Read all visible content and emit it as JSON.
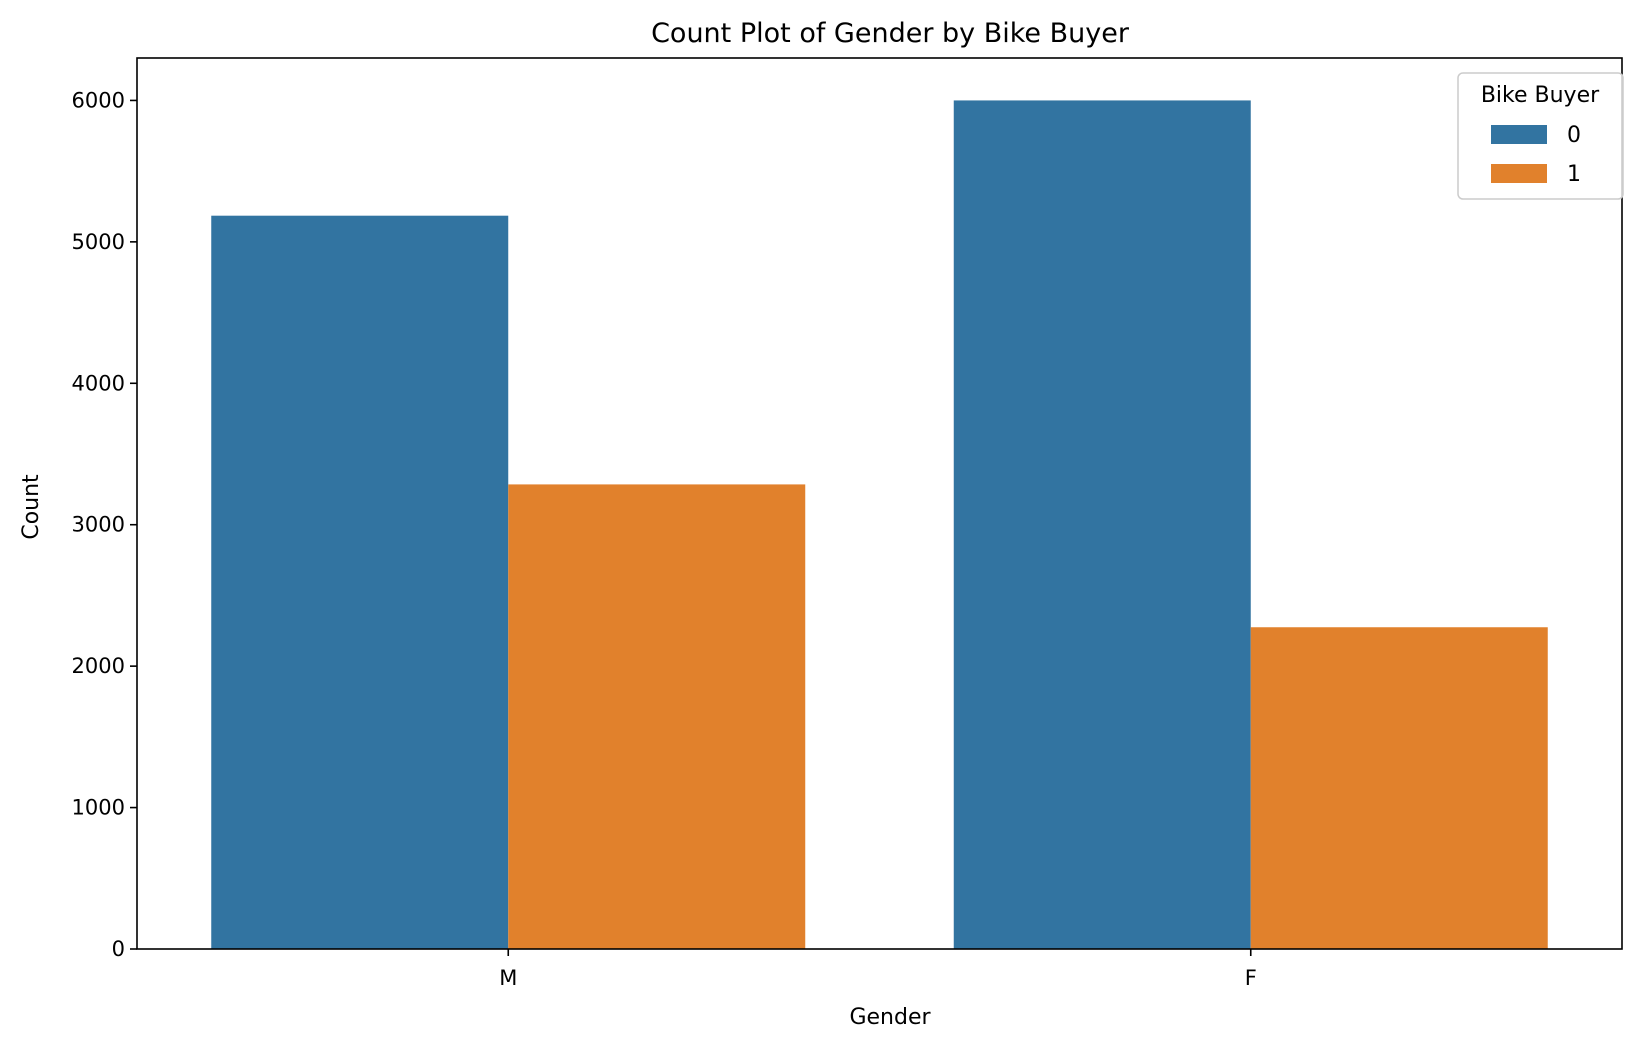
{
  "chart_data": {
    "type": "bar",
    "title": "Count Plot of Gender by Bike Buyer",
    "xlabel": "Gender",
    "ylabel": "Count",
    "categories": [
      "M",
      "F"
    ],
    "series": [
      {
        "name": "0",
        "color": "#3274a1",
        "values": [
          5185,
          6000
        ]
      },
      {
        "name": "1",
        "color": "#e1812c",
        "values": [
          3285,
          2275
        ]
      }
    ],
    "ylim": [
      0,
      6300
    ],
    "yticks": [
      0,
      1000,
      2000,
      3000,
      4000,
      5000,
      6000
    ],
    "legend": {
      "title": "Bike Buyer",
      "position": "top-right"
    },
    "grid": false
  }
}
